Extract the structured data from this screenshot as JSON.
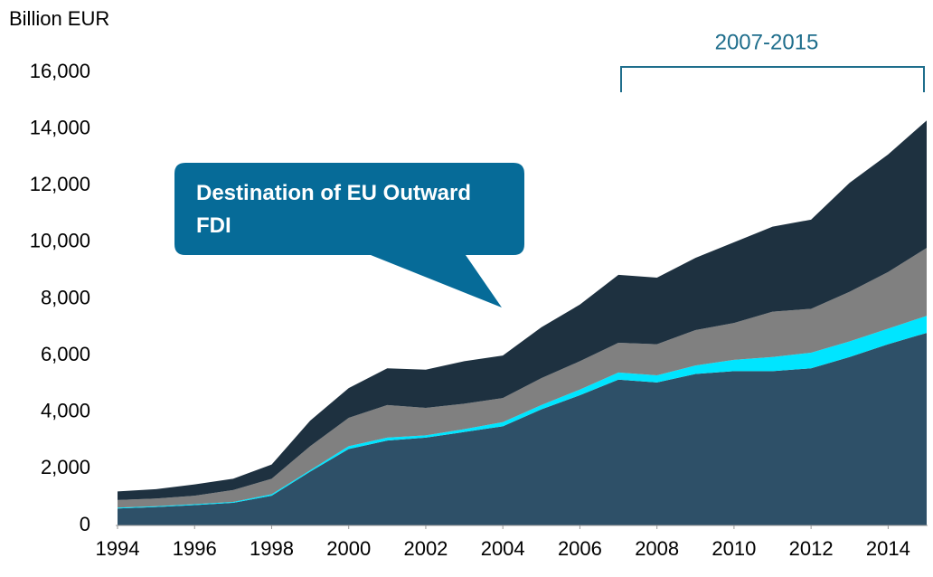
{
  "chart_data": {
    "type": "stacked_area",
    "y_label": "Billion EUR",
    "annotations": [
      "2007-2015",
      "Destination of EU Outward FDI"
    ],
    "x": [
      1994,
      1995,
      1996,
      1997,
      1998,
      1999,
      2000,
      2001,
      2002,
      2003,
      2004,
      2005,
      2006,
      2007,
      2008,
      2009,
      2010,
      2011,
      2012,
      2013,
      2014,
      2015
    ],
    "series": [
      {
        "color": "#2e5068",
        "values": [
          600,
          650,
          720,
          800,
          1050,
          1900,
          2700,
          3000,
          3100,
          3300,
          3500,
          4100,
          4600,
          5150,
          5050,
          5350,
          5450,
          5450,
          5550,
          5950,
          6400,
          6800
        ]
      },
      {
        "color": "#00e5ff",
        "values": [
          30,
          30,
          30,
          30,
          50,
          50,
          100,
          100,
          80,
          100,
          150,
          150,
          200,
          250,
          250,
          300,
          400,
          500,
          550,
          550,
          550,
          600
        ]
      },
      {
        "color": "#808080",
        "values": [
          270,
          270,
          300,
          420,
          550,
          850,
          1000,
          1150,
          970,
          900,
          850,
          950,
          1000,
          1050,
          1100,
          1250,
          1300,
          1600,
          1550,
          1750,
          2000,
          2400
        ]
      },
      {
        "color": "#1e3140",
        "values": [
          300,
          330,
          400,
          400,
          500,
          900,
          1050,
          1300,
          1350,
          1500,
          1500,
          1800,
          2000,
          2400,
          2350,
          2550,
          2850,
          3000,
          3150,
          3850,
          4150,
          4500
        ]
      }
    ],
    "xlim": [
      1994,
      2015
    ],
    "xticks": [
      1994,
      1996,
      1998,
      2000,
      2002,
      2004,
      2006,
      2008,
      2010,
      2012,
      2014
    ],
    "ylim": [
      0,
      16000
    ],
    "yticks": [
      0,
      {
        "value": 2000,
        "label": "2,000"
      },
      {
        "value": 4000,
        "label": "4,000"
      },
      {
        "value": 6000,
        "label": "6,000"
      },
      {
        "value": 8000,
        "label": "8,000"
      },
      {
        "value": 10000,
        "label": "10,000"
      },
      {
        "value": 12000,
        "label": "12,000"
      },
      {
        "value": 14000,
        "label": "14,000"
      },
      {
        "value": 16000,
        "label": "16,000"
      }
    ],
    "grid": false
  }
}
